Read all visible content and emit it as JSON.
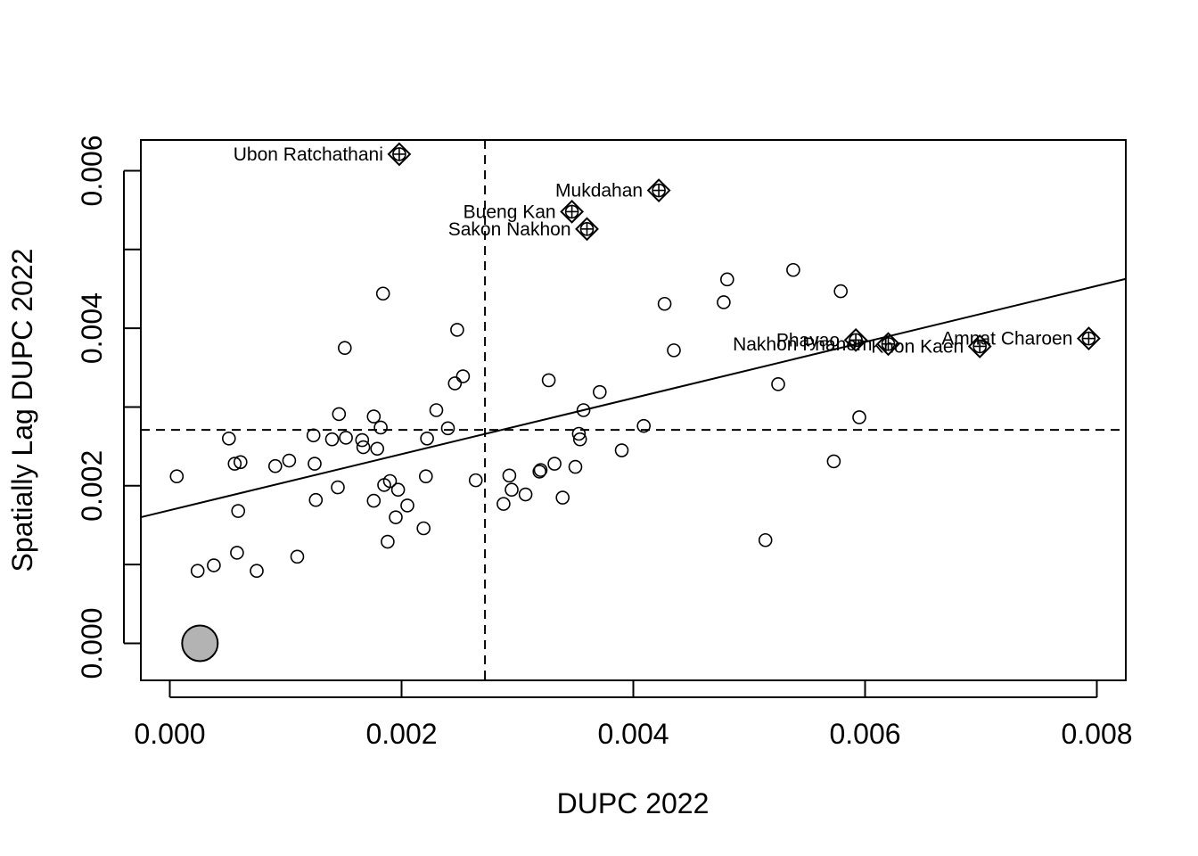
{
  "chart_data": {
    "type": "scatter",
    "title": "",
    "xlabel": "DUPC 2022",
    "ylabel": "Spatially Lag DUPC 2022",
    "xlim": [
      -0.00025,
      0.00825
    ],
    "ylim": [
      -0.00047,
      0.00639
    ],
    "x_ticks": [
      "0.000",
      "0.002",
      "0.004",
      "0.006",
      "0.008"
    ],
    "y_ticks": [
      "0.000",
      "0.002",
      "0.004",
      "0.006"
    ],
    "grid": false,
    "mean_x": 0.00272,
    "mean_y": 0.00271,
    "regression_line": {
      "intercept": 0.00169,
      "slope": 0.356
    },
    "points": [
      [
        6e-05,
        0.00212
      ],
      [
        0.00024,
        0.00092
      ],
      [
        0.00038,
        0.00099
      ],
      [
        0.00051,
        0.0026
      ],
      [
        0.00056,
        0.00228
      ],
      [
        0.00058,
        0.00115
      ],
      [
        0.00059,
        0.00168
      ],
      [
        0.00061,
        0.0023
      ],
      [
        0.00075,
        0.00092
      ],
      [
        0.00091,
        0.00225
      ],
      [
        0.00103,
        0.00232
      ],
      [
        0.0011,
        0.0011
      ],
      [
        0.00124,
        0.00264
      ],
      [
        0.00125,
        0.00228
      ],
      [
        0.00126,
        0.00182
      ],
      [
        0.0014,
        0.00259
      ],
      [
        0.00145,
        0.00198
      ],
      [
        0.00146,
        0.00291
      ],
      [
        0.00151,
        0.00375
      ],
      [
        0.00152,
        0.00261
      ],
      [
        0.00166,
        0.00258
      ],
      [
        0.00167,
        0.00249
      ],
      [
        0.00176,
        0.00181
      ],
      [
        0.00176,
        0.00288
      ],
      [
        0.00179,
        0.00247
      ],
      [
        0.00182,
        0.00274
      ],
      [
        0.00184,
        0.00444
      ],
      [
        0.00185,
        0.00201
      ],
      [
        0.00188,
        0.00129
      ],
      [
        0.0019,
        0.00206
      ],
      [
        0.00195,
        0.0016
      ],
      [
        0.00197,
        0.00195
      ],
      [
        0.00205,
        0.00175
      ],
      [
        0.00219,
        0.00146
      ],
      [
        0.00221,
        0.00212
      ],
      [
        0.00222,
        0.0026
      ],
      [
        0.0023,
        0.00296
      ],
      [
        0.0024,
        0.00273
      ],
      [
        0.00246,
        0.0033
      ],
      [
        0.00248,
        0.00398
      ],
      [
        0.00253,
        0.00339
      ],
      [
        0.00264,
        0.00207
      ],
      [
        0.00288,
        0.00177
      ],
      [
        0.00293,
        0.00213
      ],
      [
        0.00295,
        0.00195
      ],
      [
        0.00307,
        0.00189
      ],
      [
        0.00319,
        0.00218
      ],
      [
        0.0032,
        0.0022
      ],
      [
        0.00327,
        0.00334
      ],
      [
        0.00332,
        0.00228
      ],
      [
        0.00339,
        0.00185
      ],
      [
        0.0035,
        0.00224
      ],
      [
        0.00353,
        0.00266
      ],
      [
        0.00354,
        0.00259
      ],
      [
        0.00357,
        0.00296
      ],
      [
        0.00371,
        0.00319
      ],
      [
        0.0039,
        0.00245
      ],
      [
        0.00409,
        0.00276
      ],
      [
        0.00427,
        0.00431
      ],
      [
        0.00435,
        0.00372
      ],
      [
        0.00478,
        0.00433
      ],
      [
        0.00481,
        0.00462
      ],
      [
        0.00514,
        0.00131
      ],
      [
        0.00525,
        0.00329
      ],
      [
        0.00538,
        0.00474
      ],
      [
        0.00573,
        0.00231
      ],
      [
        0.00579,
        0.00447
      ],
      [
        0.00595,
        0.00287
      ]
    ],
    "influential": [
      {
        "name": "Ubon Ratchathani",
        "x": 0.00198,
        "y": 0.00621,
        "label_pos": "left"
      },
      {
        "name": "Mukdahan",
        "x": 0.00422,
        "y": 0.00575,
        "label_pos": "left"
      },
      {
        "name": "Bueng Kan",
        "x": 0.00347,
        "y": 0.00548,
        "label_pos": "left"
      },
      {
        "name": "Sakon Nakhon",
        "x": 0.0036,
        "y": 0.00526,
        "label_pos": "left"
      },
      {
        "name": "Phayao",
        "x": 0.00592,
        "y": 0.00385,
        "label_pos": "left"
      },
      {
        "name": "Nakhon Phanom",
        "x": 0.0062,
        "y": 0.0038,
        "label_pos": "left"
      },
      {
        "name": "Khon Kaen",
        "x": 0.00699,
        "y": 0.00377,
        "label_pos": "left"
      },
      {
        "name": "Amnat Charoen",
        "x": 0.00793,
        "y": 0.00387,
        "label_pos": "left"
      }
    ],
    "highlight": {
      "x": 0.00026,
      "y": 0.0
    }
  }
}
